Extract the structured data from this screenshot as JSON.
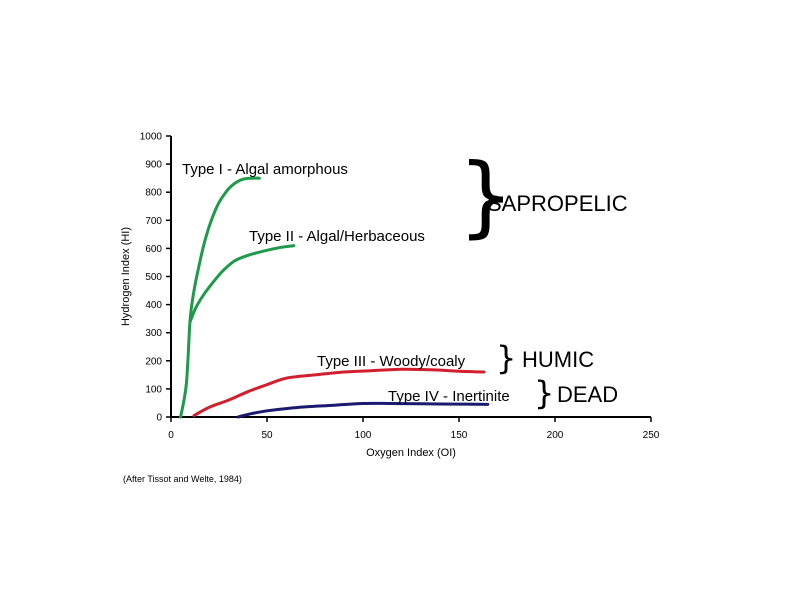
{
  "chart_data": {
    "type": "line",
    "xlabel": "Oxygen Index (OI)",
    "ylabel": "Hydrogen Index (HI)",
    "xlim": [
      0,
      250
    ],
    "ylim": [
      0,
      1000
    ],
    "xticks": [
      "0",
      "50",
      "100",
      "150",
      "200",
      "250"
    ],
    "yticks": [
      "0",
      "100",
      "200",
      "300",
      "400",
      "500",
      "600",
      "700",
      "800",
      "900",
      "1000"
    ],
    "grid": false,
    "legend": "none",
    "series": [
      {
        "name": "Type I - Algal amorphous",
        "color": "#1f9a4a",
        "x": [
          5,
          8,
          10,
          12,
          14,
          17,
          20,
          24,
          28,
          32,
          37,
          42,
          46
        ],
        "y": [
          0,
          120,
          350,
          450,
          520,
          610,
          680,
          750,
          795,
          825,
          845,
          850,
          850
        ]
      },
      {
        "name": "Type II - Algal/Herbaceous",
        "color": "#1f9a4a",
        "x": [
          10,
          13,
          17,
          22,
          27,
          33,
          40,
          48,
          56,
          64
        ],
        "y": [
          340,
          390,
          435,
          480,
          520,
          555,
          575,
          590,
          602,
          610
        ]
      },
      {
        "name": "Type III - Woody/coaly",
        "color": "#d21f2e",
        "x": [
          12,
          20,
          30,
          40,
          50,
          60,
          75,
          90,
          105,
          120,
          135,
          150,
          163
        ],
        "y": [
          5,
          35,
          60,
          90,
          115,
          138,
          150,
          160,
          165,
          170,
          168,
          163,
          160
        ]
      },
      {
        "name": "Type IV - Inertinite",
        "color": "#1a1a70",
        "x": [
          35,
          42,
          50,
          60,
          70,
          85,
          100,
          115,
          130,
          150,
          165
        ],
        "y": [
          0,
          12,
          22,
          30,
          36,
          42,
          48,
          48,
          47,
          46,
          45
        ]
      }
    ],
    "groups": [
      {
        "label": "SAPROPELIC",
        "members": [
          "Type I - Algal amorphous",
          "Type II - Algal/Herbaceous"
        ]
      },
      {
        "label": "HUMIC",
        "members": [
          "Type III - Woody/coaly"
        ]
      },
      {
        "label": "DEAD",
        "members": [
          "Type IV - Inertinite"
        ]
      }
    ],
    "brace_glyph": "}",
    "source_note": "(After Tissot and Welte, 1984)"
  }
}
